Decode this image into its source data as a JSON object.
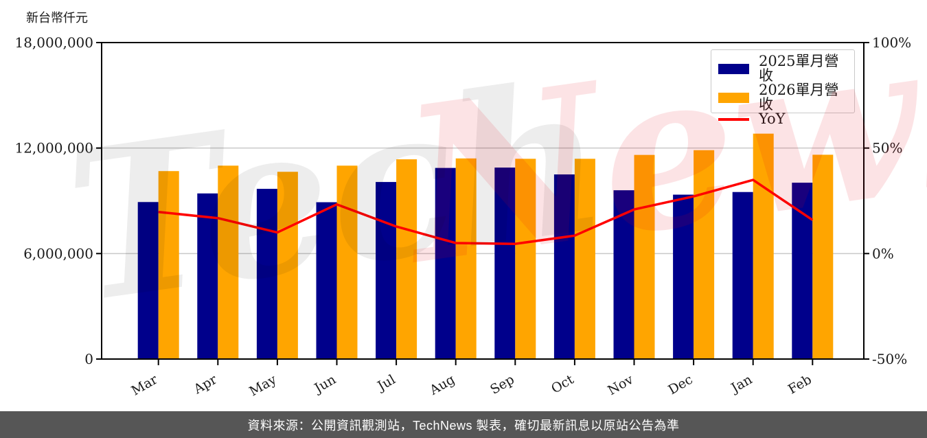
{
  "unit_label": "新台幣仟元",
  "watermark": {
    "tech": "Tech",
    "news": "News"
  },
  "footer": {
    "text": "資料來源：公開資訊觀測站，TechNews 製表，確切最新訊息以原站公告為準"
  },
  "chart_data": {
    "type": "bar",
    "title": "",
    "categories": [
      "Mar",
      "Apr",
      "May",
      "Jun",
      "Jul",
      "Aug",
      "Sep",
      "Oct",
      "Nov",
      "Dec",
      "Jan",
      "Feb"
    ],
    "series": [
      {
        "name": "2025單月營收",
        "type": "bar",
        "color": "#00008B",
        "axis": "left",
        "values": [
          8930000,
          9420000,
          9680000,
          8920000,
          10070000,
          10870000,
          10890000,
          10500000,
          9600000,
          9350000,
          9500000,
          10030000
        ]
      },
      {
        "name": "2026單月營收",
        "type": "bar",
        "color": "#FFA500",
        "axis": "left",
        "values": [
          10690000,
          11000000,
          10650000,
          11000000,
          11360000,
          11410000,
          11390000,
          11390000,
          11610000,
          11880000,
          12820000,
          11620000
        ]
      },
      {
        "name": "YoY",
        "type": "line",
        "color": "#FF0000",
        "axis": "right",
        "values": [
          19.7,
          16.8,
          10.0,
          23.3,
          12.8,
          5.0,
          4.6,
          8.5,
          20.9,
          27.1,
          34.9,
          15.9
        ]
      }
    ],
    "left_axis": {
      "label": "新台幣仟元",
      "min": 0,
      "max": 18000000,
      "tick_values": [
        0,
        6000000,
        12000000,
        18000000
      ],
      "tick_labels": [
        "0",
        "6,000,000",
        "12,000,000",
        "18,000,000"
      ],
      "grid_values": [
        6000000,
        12000000
      ]
    },
    "right_axis": {
      "min": -50,
      "max": 100,
      "tick_values": [
        -50,
        0,
        50,
        100
      ],
      "tick_labels": [
        "-50%",
        "0%",
        "50%",
        "100%"
      ]
    },
    "grid": true,
    "legend_position": "top-right"
  }
}
